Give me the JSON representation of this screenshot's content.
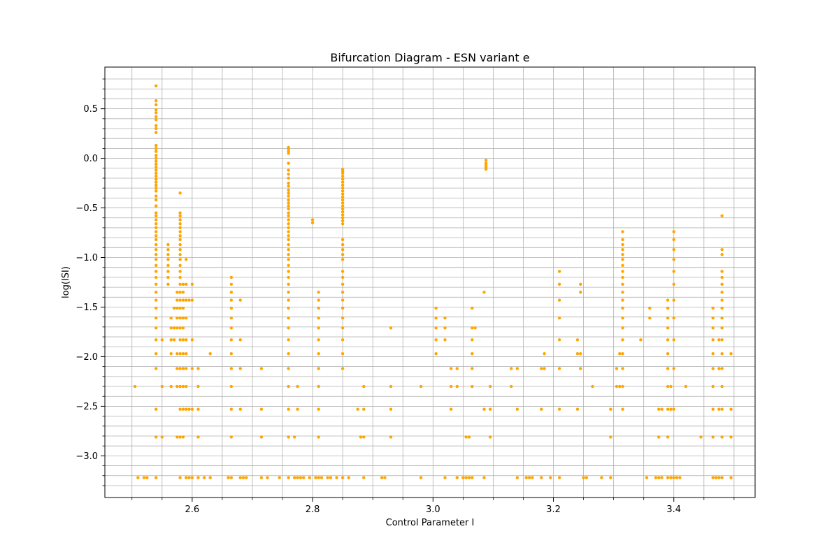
{
  "chart_data": {
    "type": "scatter",
    "title": "Bifurcation Diagram - ESN variant e",
    "xlabel": "Control Parameter I",
    "ylabel": "log(ISI)",
    "xlim": [
      2.455,
      3.535
    ],
    "ylim": [
      -3.42,
      0.92
    ],
    "x_major_ticks": [
      2.6,
      2.8,
      3.0,
      3.2,
      3.4
    ],
    "x_tick_labels": [
      "2.6",
      "2.8",
      "3.0",
      "3.2",
      "3.4"
    ],
    "x_minor_ticks": [
      2.5,
      2.55,
      2.65,
      2.7,
      2.75,
      2.85,
      2.9,
      2.95,
      3.05,
      3.1,
      3.15,
      3.25,
      3.3,
      3.35,
      3.45,
      3.5
    ],
    "y_major_ticks": [
      -3.0,
      -2.5,
      -2.0,
      -1.5,
      -1.0,
      -0.5,
      0.0,
      0.5
    ],
    "y_tick_labels": [
      "−3.0",
      "−2.5",
      "−2.0",
      "−1.5",
      "−1.0",
      "−0.5",
      "0.0",
      "0.5"
    ],
    "y_minor_ticks": [
      -3.3,
      -3.2,
      -3.1,
      -2.9,
      -2.8,
      -2.7,
      -2.6,
      -2.4,
      -2.3,
      -2.2,
      -2.1,
      -1.9,
      -1.8,
      -1.7,
      -1.6,
      -1.4,
      -1.3,
      -1.2,
      -1.1,
      -0.9,
      -0.8,
      -0.7,
      -0.6,
      -0.4,
      -0.3,
      -0.2,
      -0.1,
      0.1,
      0.2,
      0.3,
      0.4,
      0.6,
      0.7,
      0.8
    ],
    "grid": true,
    "marker_color": "#ffa500",
    "columns": [
      {
        "x": 2.505,
        "y": [
          -2.3
        ]
      },
      {
        "x": 2.51,
        "y": [
          -3.22
        ]
      },
      {
        "x": 2.52,
        "y": [
          -3.22
        ]
      },
      {
        "x": 2.525,
        "y": [
          -3.22
        ]
      },
      {
        "x": 2.54,
        "y": [
          -3.22,
          -2.81,
          -2.53,
          -2.12,
          -1.97,
          -1.83,
          -1.71,
          -1.61,
          -1.51,
          -1.43,
          -1.35,
          -1.27,
          -1.2,
          -1.14,
          -1.08,
          -1.02,
          -0.97,
          -0.92,
          -0.87,
          -0.82,
          -0.78,
          -0.74,
          -0.7,
          -0.66,
          -0.62,
          -0.58,
          -0.55,
          -0.48,
          -0.42,
          -0.38,
          -0.33,
          -0.3,
          -0.27,
          -0.24,
          -0.21,
          -0.18,
          -0.15,
          -0.12,
          -0.09,
          -0.06,
          -0.03,
          0.0,
          0.03,
          0.07,
          0.1,
          0.13,
          0.26,
          0.3,
          0.33,
          0.39,
          0.42,
          0.46,
          0.49,
          0.54,
          0.58,
          0.73
        ]
      },
      {
        "x": 2.55,
        "y": [
          -2.81,
          -1.83,
          -2.3
        ]
      },
      {
        "x": 2.56,
        "y": [
          -1.27,
          -1.2,
          -1.14,
          -1.08,
          -1.02,
          -0.97,
          -0.92,
          -0.87
        ]
      },
      {
        "x": 2.565,
        "y": [
          -2.3,
          -1.97,
          -1.83,
          -1.71,
          -1.61
        ]
      },
      {
        "x": 2.57,
        "y": [
          -1.83,
          -1.71,
          -1.51
        ]
      },
      {
        "x": 2.575,
        "y": [
          -2.81,
          -2.3,
          -2.12,
          -1.97,
          -1.71,
          -1.61,
          -1.51,
          -1.43,
          -1.35
        ]
      },
      {
        "x": 2.58,
        "y": [
          -3.22,
          -2.81,
          -2.53,
          -2.3,
          -2.12,
          -1.97,
          -1.83,
          -1.71,
          -1.61,
          -1.51,
          -1.43,
          -1.35,
          -1.27,
          -1.2,
          -1.14,
          -1.08,
          -1.02,
          -0.97,
          -0.92,
          -0.87,
          -0.82,
          -0.78,
          -0.74,
          -0.7,
          -0.66,
          -0.62,
          -0.58,
          -0.55,
          -0.35
        ]
      },
      {
        "x": 2.585,
        "y": [
          -2.81,
          -2.53,
          -2.3,
          -2.12,
          -1.97,
          -1.83,
          -1.71,
          -1.61,
          -1.51,
          -1.43,
          -1.35,
          -1.27
        ]
      },
      {
        "x": 2.59,
        "y": [
          -3.22,
          -2.53,
          -2.3,
          -2.12,
          -1.97,
          -1.83,
          -1.61,
          -1.43,
          -1.27,
          -1.02
        ]
      },
      {
        "x": 2.595,
        "y": [
          -3.22,
          -2.53,
          -1.43
        ]
      },
      {
        "x": 2.6,
        "y": [
          -3.22,
          -2.53,
          -2.12,
          -1.83,
          -1.43,
          -1.27
        ]
      },
      {
        "x": 2.61,
        "y": [
          -3.22,
          -2.81,
          -2.53,
          -2.3,
          -2.12
        ]
      },
      {
        "x": 2.62,
        "y": [
          -3.22
        ]
      },
      {
        "x": 2.63,
        "y": [
          -3.22,
          -1.97
        ]
      },
      {
        "x": 2.66,
        "y": [
          -3.22
        ]
      },
      {
        "x": 2.665,
        "y": [
          -3.22,
          -2.81,
          -2.53,
          -2.3,
          -2.12,
          -1.97,
          -1.83,
          -1.71,
          -1.61,
          -1.51,
          -1.43,
          -1.35,
          -1.27,
          -1.2
        ]
      },
      {
        "x": 2.68,
        "y": [
          -3.22,
          -2.53,
          -2.12,
          -1.83,
          -1.43
        ]
      },
      {
        "x": 2.685,
        "y": [
          -3.22
        ]
      },
      {
        "x": 2.69,
        "y": [
          -3.22
        ]
      },
      {
        "x": 2.715,
        "y": [
          -3.22,
          -2.81,
          -2.53,
          -2.12
        ]
      },
      {
        "x": 2.725,
        "y": [
          -3.22
        ]
      },
      {
        "x": 2.745,
        "y": [
          -3.22
        ]
      },
      {
        "x": 2.76,
        "y": [
          -3.22,
          -2.81,
          -2.53,
          -2.3,
          -2.12,
          -1.97,
          -1.83,
          -1.71,
          -1.61,
          -1.51,
          -1.43,
          -1.35,
          -1.27,
          -1.2,
          -1.14,
          -1.08,
          -1.02,
          -0.97,
          -0.92,
          -0.87,
          -0.82,
          -0.78,
          -0.74,
          -0.7,
          -0.66,
          -0.62,
          -0.58,
          -0.55,
          -0.51,
          -0.48,
          -0.45,
          -0.42,
          -0.38,
          -0.35,
          -0.32,
          -0.28,
          -0.25,
          -0.2,
          -0.16,
          -0.12,
          -0.05,
          0.05,
          0.07,
          0.09,
          0.11
        ]
      },
      {
        "x": 2.77,
        "y": [
          -3.22,
          -2.81
        ]
      },
      {
        "x": 2.775,
        "y": [
          -3.22,
          -2.53,
          -2.3
        ]
      },
      {
        "x": 2.78,
        "y": [
          -3.22
        ]
      },
      {
        "x": 2.785,
        "y": [
          -3.22
        ]
      },
      {
        "x": 2.795,
        "y": [
          -3.22
        ]
      },
      {
        "x": 2.8,
        "y": [
          -0.65,
          -0.62
        ]
      },
      {
        "x": 2.805,
        "y": [
          -3.22
        ]
      },
      {
        "x": 2.81,
        "y": [
          -3.22,
          -2.81,
          -2.53,
          -2.3,
          -2.12,
          -1.97,
          -1.83,
          -1.71,
          -1.61,
          -1.51,
          -1.43,
          -1.35
        ]
      },
      {
        "x": 2.815,
        "y": [
          -3.22
        ]
      },
      {
        "x": 2.825,
        "y": [
          -3.22
        ]
      },
      {
        "x": 2.83,
        "y": [
          -3.22
        ]
      },
      {
        "x": 2.84,
        "y": [
          -3.22
        ]
      },
      {
        "x": 2.85,
        "y": [
          -3.22,
          -2.12,
          -1.97,
          -1.83,
          -1.71,
          -1.61,
          -1.51,
          -1.43,
          -1.35,
          -1.27,
          -1.2,
          -1.14,
          -1.02,
          -0.97,
          -0.92,
          -0.87,
          -0.82,
          -0.66,
          -0.63,
          -0.6,
          -0.57,
          -0.54,
          -0.51,
          -0.48,
          -0.45,
          -0.42,
          -0.39,
          -0.36,
          -0.33,
          -0.3,
          -0.27,
          -0.24,
          -0.21,
          -0.18,
          -0.15,
          -0.13,
          -0.11
        ]
      },
      {
        "x": 2.86,
        "y": [
          -3.22
        ]
      },
      {
        "x": 2.875,
        "y": [
          -2.53
        ]
      },
      {
        "x": 2.88,
        "y": [
          -2.81
        ]
      },
      {
        "x": 2.885,
        "y": [
          -3.22,
          -2.81,
          -2.53,
          -2.3
        ]
      },
      {
        "x": 2.915,
        "y": [
          -3.22
        ]
      },
      {
        "x": 2.92,
        "y": [
          -3.22
        ]
      },
      {
        "x": 2.93,
        "y": [
          -2.81,
          -2.53,
          -2.3,
          -1.71
        ]
      },
      {
        "x": 2.98,
        "y": [
          -3.22,
          -2.3
        ]
      },
      {
        "x": 3.005,
        "y": [
          -1.97,
          -1.83,
          -1.71,
          -1.61,
          -1.51
        ]
      },
      {
        "x": 3.02,
        "y": [
          -3.22,
          -1.83,
          -1.71,
          -1.61
        ]
      },
      {
        "x": 3.03,
        "y": [
          -2.53,
          -2.3,
          -2.12
        ]
      },
      {
        "x": 3.04,
        "y": [
          -3.22,
          -2.3,
          -2.12
        ]
      },
      {
        "x": 3.05,
        "y": [
          -3.22
        ]
      },
      {
        "x": 3.055,
        "y": [
          -3.22,
          -2.81
        ]
      },
      {
        "x": 3.06,
        "y": [
          -3.22,
          -2.81
        ]
      },
      {
        "x": 3.065,
        "y": [
          -3.22,
          -2.3,
          -2.12,
          -1.97,
          -1.83,
          -1.71,
          -1.51
        ]
      },
      {
        "x": 3.07,
        "y": [
          -1.71
        ]
      },
      {
        "x": 3.085,
        "y": [
          -3.22,
          -2.53,
          -1.35
        ]
      },
      {
        "x": 3.088,
        "y": [
          -0.11,
          -0.09,
          -0.07,
          -0.05,
          -0.02
        ]
      },
      {
        "x": 3.095,
        "y": [
          -2.81,
          -2.53,
          -2.3
        ]
      },
      {
        "x": 3.13,
        "y": [
          -2.3,
          -2.12
        ]
      },
      {
        "x": 3.14,
        "y": [
          -3.22,
          -2.53,
          -2.12
        ]
      },
      {
        "x": 3.155,
        "y": [
          -3.22
        ]
      },
      {
        "x": 3.16,
        "y": [
          -3.22
        ]
      },
      {
        "x": 3.165,
        "y": [
          -3.22
        ]
      },
      {
        "x": 3.18,
        "y": [
          -3.22,
          -2.53,
          -2.12
        ]
      },
      {
        "x": 3.185,
        "y": [
          -2.12,
          -1.97
        ]
      },
      {
        "x": 3.195,
        "y": [
          -3.22
        ]
      },
      {
        "x": 3.21,
        "y": [
          -3.22,
          -2.53,
          -2.12,
          -1.83,
          -1.61,
          -1.43,
          -1.27,
          -1.14
        ]
      },
      {
        "x": 3.24,
        "y": [
          -2.53,
          -1.97,
          -1.83
        ]
      },
      {
        "x": 3.245,
        "y": [
          -2.12,
          -1.97,
          -1.35,
          -1.27
        ]
      },
      {
        "x": 3.25,
        "y": [
          -3.22
        ]
      },
      {
        "x": 3.255,
        "y": [
          -3.22
        ]
      },
      {
        "x": 3.265,
        "y": [
          -2.3
        ]
      },
      {
        "x": 3.28,
        "y": [
          -3.22
        ]
      },
      {
        "x": 3.295,
        "y": [
          -3.22,
          -2.81,
          -2.53
        ]
      },
      {
        "x": 3.305,
        "y": [
          -2.3,
          -2.12
        ]
      },
      {
        "x": 3.31,
        "y": [
          -2.3,
          -1.97
        ]
      },
      {
        "x": 3.315,
        "y": [
          -2.53,
          -2.3,
          -2.12,
          -1.97,
          -1.83,
          -1.71,
          -1.61,
          -1.51,
          -1.43,
          -1.35,
          -1.27,
          -1.2,
          -1.14,
          -1.08,
          -1.02,
          -0.97,
          -0.92,
          -0.87,
          -0.82,
          -0.74
        ]
      },
      {
        "x": 3.345,
        "y": [
          -1.83
        ]
      },
      {
        "x": 3.355,
        "y": [
          -3.22
        ]
      },
      {
        "x": 3.36,
        "y": [
          -1.61,
          -1.51
        ]
      },
      {
        "x": 3.37,
        "y": [
          -3.22
        ]
      },
      {
        "x": 3.375,
        "y": [
          -3.22,
          -2.81,
          -2.53
        ]
      },
      {
        "x": 3.38,
        "y": [
          -3.22,
          -2.53
        ]
      },
      {
        "x": 3.39,
        "y": [
          -3.22,
          -2.81,
          -2.53,
          -2.3,
          -2.12,
          -1.97,
          -1.83,
          -1.71,
          -1.61,
          -1.51,
          -1.43
        ]
      },
      {
        "x": 3.395,
        "y": [
          -3.22,
          -2.53,
          -2.3
        ]
      },
      {
        "x": 3.4,
        "y": [
          -3.22,
          -2.53,
          -2.12,
          -1.83,
          -1.61,
          -1.43,
          -1.27,
          -1.14,
          -1.02,
          -0.92,
          -0.82,
          -0.74
        ]
      },
      {
        "x": 3.405,
        "y": [
          -3.22
        ]
      },
      {
        "x": 3.41,
        "y": [
          -3.22
        ]
      },
      {
        "x": 3.42,
        "y": [
          -2.3
        ]
      },
      {
        "x": 3.445,
        "y": [
          -2.81
        ]
      },
      {
        "x": 3.465,
        "y": [
          -3.22,
          -2.81,
          -2.53,
          -2.3,
          -2.12,
          -1.97,
          -1.83,
          -1.71,
          -1.61,
          -1.51
        ]
      },
      {
        "x": 3.47,
        "y": [
          -3.22
        ]
      },
      {
        "x": 3.475,
        "y": [
          -3.22,
          -2.53,
          -2.12,
          -1.83
        ]
      },
      {
        "x": 3.48,
        "y": [
          -3.22,
          -2.81,
          -2.53,
          -2.3,
          -2.12,
          -1.97,
          -1.83,
          -1.71,
          -1.61,
          -1.51,
          -1.43,
          -1.35,
          -1.27,
          -1.2,
          -1.14,
          -0.97,
          -0.92,
          -0.58
        ]
      },
      {
        "x": 3.495,
        "y": [
          -3.22,
          -2.81,
          -2.53,
          -1.97
        ]
      }
    ]
  }
}
